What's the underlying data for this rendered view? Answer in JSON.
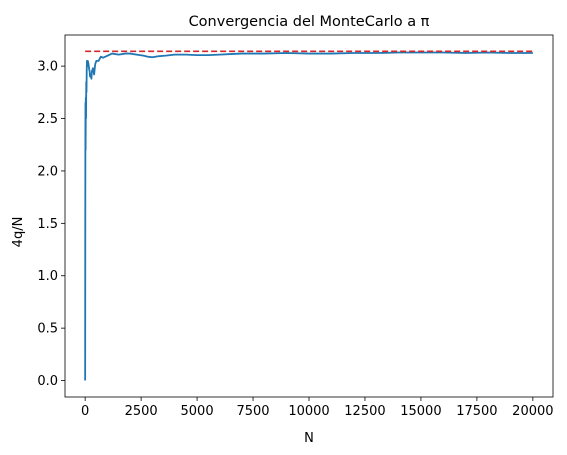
{
  "chart_data": {
    "type": "line",
    "title": "Convergencia del MonteCarlo a π",
    "xlabel": "N",
    "ylabel": "4q/N",
    "xlim": [
      -900,
      20900
    ],
    "ylim": [
      -0.157,
      3.297
    ],
    "xticks": [
      0,
      2500,
      5000,
      7500,
      10000,
      12500,
      15000,
      17500,
      20000
    ],
    "yticks": [
      0.0,
      0.5,
      1.0,
      1.5,
      2.0,
      2.5,
      3.0
    ],
    "grid": false,
    "reference_line": {
      "y": 3.14159,
      "x_range": [
        0,
        20000
      ],
      "color": "#d62728",
      "style": "dashed"
    },
    "series": [
      {
        "color": "#1f77b4",
        "points": [
          [
            0,
            0.0
          ],
          [
            5,
            1.3
          ],
          [
            10,
            2.2
          ],
          [
            15,
            2.65
          ],
          [
            20,
            2.2
          ],
          [
            30,
            2.7
          ],
          [
            40,
            2.5
          ],
          [
            50,
            2.85
          ],
          [
            60,
            2.75
          ],
          [
            70,
            2.95
          ],
          [
            80,
            3.05
          ],
          [
            100,
            3.0
          ],
          [
            120,
            3.05
          ],
          [
            150,
            3.02
          ],
          [
            180,
            2.97
          ],
          [
            200,
            2.95
          ],
          [
            220,
            2.9
          ],
          [
            250,
            2.92
          ],
          [
            280,
            2.88
          ],
          [
            300,
            2.95
          ],
          [
            350,
            2.98
          ],
          [
            400,
            2.92
          ],
          [
            450,
            3.02
          ],
          [
            500,
            3.05
          ],
          [
            600,
            3.05
          ],
          [
            700,
            3.09
          ],
          [
            800,
            3.08
          ],
          [
            1000,
            3.1
          ],
          [
            1200,
            3.12
          ],
          [
            1500,
            3.11
          ],
          [
            1800,
            3.12
          ],
          [
            2000,
            3.12
          ],
          [
            2300,
            3.11
          ],
          [
            2600,
            3.1
          ],
          [
            2800,
            3.09
          ],
          [
            3000,
            3.085
          ],
          [
            3300,
            3.095
          ],
          [
            3600,
            3.1
          ],
          [
            4000,
            3.11
          ],
          [
            4500,
            3.11
          ],
          [
            5000,
            3.105
          ],
          [
            5500,
            3.105
          ],
          [
            6000,
            3.11
          ],
          [
            6500,
            3.115
          ],
          [
            7000,
            3.12
          ],
          [
            8000,
            3.12
          ],
          [
            9000,
            3.125
          ],
          [
            10000,
            3.12
          ],
          [
            11000,
            3.12
          ],
          [
            12000,
            3.125
          ],
          [
            13000,
            3.125
          ],
          [
            14000,
            3.13
          ],
          [
            15000,
            3.13
          ],
          [
            16000,
            3.13
          ],
          [
            17000,
            3.125
          ],
          [
            18000,
            3.13
          ],
          [
            19000,
            3.125
          ],
          [
            20000,
            3.125
          ]
        ]
      }
    ]
  }
}
